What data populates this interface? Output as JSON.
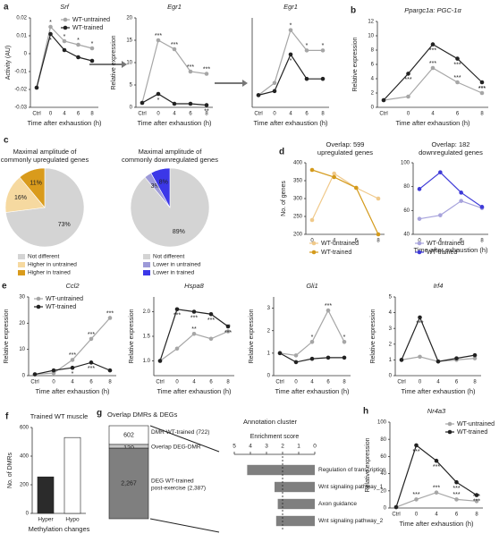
{
  "chart_data": [
    {
      "type": "line",
      "panel": "a",
      "title": "Srf",
      "ylabel": "Activity (AU)",
      "xlabel": "Time after exhaustion (h)",
      "categories": [
        "Ctrl",
        "0",
        "4",
        "6",
        "8"
      ],
      "ylim": [
        -0.03,
        0.02
      ],
      "yticks": [
        -0.03,
        -0.02,
        -0.01,
        0,
        0.01,
        0.02
      ],
      "legend": "upper right",
      "series": [
        {
          "name": "WT-untrained",
          "color": "#a6a6a6",
          "values": [
            -0.019,
            0.015,
            0.007,
            0.005,
            0.003
          ],
          "labels": [
            null,
            "*",
            "*",
            "*",
            "*"
          ]
        },
        {
          "name": "WT-trained",
          "color": "#222222",
          "values": [
            -0.019,
            0.011,
            0.002,
            -0.002,
            -0.004
          ],
          "labels": [
            null,
            "*",
            null,
            null,
            null
          ]
        }
      ]
    },
    {
      "type": "line",
      "title": "Egr1",
      "ylabel": "Relative expression",
      "xlabel": "Time after exhaustion (h)",
      "categories": [
        "Ctrl",
        "0",
        "4",
        "6",
        "8"
      ],
      "ylim": [
        0,
        20
      ],
      "yticks": [
        0,
        5,
        10,
        15,
        20
      ],
      "series": [
        {
          "name": "WT-untrained",
          "color": "#a6a6a6",
          "values": [
            1,
            15,
            13,
            8,
            7.5
          ],
          "labels": [
            null,
            "***",
            "***",
            "***",
            "***"
          ]
        },
        {
          "name": "WT-trained",
          "color": "#222222",
          "values": [
            1,
            3,
            0.8,
            0.8,
            0.5
          ],
          "labels": [
            null,
            "*",
            null,
            null,
            "**"
          ]
        }
      ]
    },
    {
      "type": "line",
      "title": "Egr1",
      "xlabel": "Time after exhaustion (h)",
      "categories": [
        "Ctrl",
        "0",
        "4",
        "6",
        "8"
      ],
      "ylim": [
        0,
        11
      ],
      "series": [
        {
          "name": "WT-untrained",
          "color": "#a6a6a6",
          "values": [
            1.5,
            3,
            9.5,
            7,
            7
          ],
          "labels": [
            null,
            null,
            "*",
            "*",
            "*"
          ]
        },
        {
          "name": "WT-trained",
          "color": "#222222",
          "values": [
            1.5,
            2,
            6.5,
            3.5,
            3.5
          ],
          "labels": [
            null,
            null,
            "*",
            null,
            null
          ]
        }
      ]
    },
    {
      "type": "line",
      "panel": "b",
      "title": "Ppargc1a: PGC-1α",
      "ylabel": "Relative expression",
      "xlabel": "Time after exhaustion (h)",
      "categories": [
        "Ctrl",
        "0",
        "4",
        "6",
        "8"
      ],
      "ylim": [
        0,
        12
      ],
      "yticks": [
        0,
        2,
        4,
        6,
        8,
        10,
        12
      ],
      "series": [
        {
          "name": "WT-untrained",
          "color": "#a6a6a6",
          "values": [
            1,
            1.5,
            5.5,
            3.5,
            2
          ],
          "labels": [
            null,
            null,
            "***",
            "***",
            "***"
          ]
        },
        {
          "name": "WT-trained",
          "color": "#222222",
          "values": [
            1,
            4.7,
            8.8,
            6.8,
            3.5
          ],
          "labels": [
            null,
            "***",
            "***",
            "***",
            "***"
          ]
        }
      ]
    },
    {
      "type": "pie",
      "panel": "c",
      "title_lines": [
        "Maximal amplitude of",
        "commonly upregulated genes"
      ],
      "categories": [
        "Not different",
        "Higher in untrained",
        "Higher in trained"
      ],
      "values": [
        73,
        16,
        11
      ],
      "value_labels": [
        "73%",
        "16%",
        "11%"
      ],
      "colors": [
        "#d4d4d4",
        "#f6d9a0",
        "#d99b1c"
      ]
    },
    {
      "type": "pie",
      "title_lines": [
        "Maximal amplitude of",
        "commonly downregulated genes"
      ],
      "categories": [
        "Not different",
        "Lower in untrained",
        "Lower in trained"
      ],
      "values": [
        89,
        3,
        8
      ],
      "value_labels": [
        "89%",
        "3%",
        "8%"
      ],
      "colors": [
        "#d4d4d4",
        "#9d9ad8",
        "#3b37e8"
      ]
    },
    {
      "type": "line",
      "panel": "d",
      "title_lines": [
        "Overlap: 599",
        "upregulated genes"
      ],
      "ylabel": "No. of genes",
      "categories": [
        "0",
        "4",
        "6",
        "8"
      ],
      "ylim": [
        200,
        400
      ],
      "yticks": [
        200,
        250,
        300,
        350,
        400
      ],
      "legend": "below",
      "series": [
        {
          "name": "WT-untrained",
          "color": "#f0c98a",
          "values": [
            240,
            370,
            330,
            300
          ]
        },
        {
          "name": "WT-trained",
          "color": "#d49a1b",
          "values": [
            380,
            360,
            330,
            200
          ]
        }
      ]
    },
    {
      "type": "line",
      "title_lines": [
        "Overlap: 182",
        "downregulated genes"
      ],
      "xlabel": "Time after exhaustion (h)",
      "categories": [
        "0",
        "4",
        "6",
        "8"
      ],
      "ylim": [
        40,
        100
      ],
      "yticks": [
        40,
        60,
        80,
        100
      ],
      "legend": "below",
      "series": [
        {
          "name": "WT-untrained",
          "color": "#a7a3dc",
          "values": [
            53,
            56,
            68,
            62
          ]
        },
        {
          "name": "WT-trained",
          "color": "#3f3bd8",
          "values": [
            78,
            92,
            75,
            63
          ]
        }
      ]
    },
    {
      "type": "line",
      "panel": "e",
      "title": "Ccl2",
      "ylabel": "Relative expression",
      "xlabel": "Time after exhaustion (h)",
      "categories": [
        "Ctrl",
        "0",
        "4",
        "6",
        "8"
      ],
      "ylim": [
        0,
        30
      ],
      "yticks": [
        0,
        10,
        20,
        30
      ],
      "legend": "upper left",
      "series": [
        {
          "name": "WT-untrained",
          "color": "#a6a6a6",
          "values": [
            0.5,
            1,
            6,
            14,
            22
          ],
          "labels": [
            null,
            null,
            "***",
            "***",
            "***"
          ]
        },
        {
          "name": "WT-trained",
          "color": "#222222",
          "values": [
            0.5,
            2,
            3,
            5,
            2
          ],
          "labels": [
            null,
            null,
            "*",
            "***",
            null
          ]
        }
      ]
    },
    {
      "type": "line",
      "title": "Hspa8",
      "ylabel": "Relative expression",
      "xlabel": "Time after exhaustion (h)",
      "categories": [
        "Ctrl",
        "0",
        "4",
        "6",
        "8"
      ],
      "ylim": [
        0.7,
        2.3
      ],
      "yticks": [
        {
          "value": 1,
          "label": "1.0"
        },
        1.5,
        {
          "value": 2,
          "label": "2.0"
        }
      ],
      "series": [
        {
          "name": "WT-untrained",
          "color": "#a6a6a6",
          "values": [
            1,
            1.25,
            1.55,
            1.45,
            1.6
          ],
          "labels": [
            null,
            null,
            "**",
            null,
            "**"
          ]
        },
        {
          "name": "WT-trained",
          "color": "#222222",
          "values": [
            1,
            2.05,
            2.0,
            1.95,
            1.7
          ],
          "labels": [
            null,
            "***",
            "***",
            "***",
            "***"
          ]
        }
      ]
    },
    {
      "type": "line",
      "title": "Gli1",
      "ylabel": "Relative expression",
      "xlabel": "Time after exhaustion (h)",
      "categories": [
        "Ctrl",
        "0",
        "4",
        "6",
        "8"
      ],
      "ylim": [
        0,
        3.5
      ],
      "yticks": [
        0,
        1,
        2,
        3
      ],
      "series": [
        {
          "name": "WT-untrained",
          "color": "#a6a6a6",
          "values": [
            1,
            0.9,
            1.5,
            2.9,
            1.5
          ],
          "labels": [
            null,
            null,
            "*",
            "***",
            "*"
          ]
        },
        {
          "name": "WT-trained",
          "color": "#222222",
          "values": [
            1,
            0.6,
            0.75,
            0.8,
            0.8
          ]
        }
      ]
    },
    {
      "type": "line",
      "title": "Irf4",
      "ylabel": "Relative expression",
      "xlabel": "Time after exhaustion (h)",
      "categories": [
        "Ctrl",
        "0",
        "4",
        "6",
        "8"
      ],
      "ylim": [
        0,
        5
      ],
      "yticks": [
        0,
        1,
        2,
        3,
        4,
        5
      ],
      "series": [
        {
          "name": "WT-untrained",
          "color": "#a6a6a6",
          "values": [
            1,
            1.2,
            0.9,
            1,
            1.1
          ]
        },
        {
          "name": "WT-trained",
          "color": "#222222",
          "values": [
            1,
            3.7,
            0.9,
            1.1,
            1.3
          ],
          "labels": [
            null,
            "***",
            null,
            null,
            null
          ]
        }
      ]
    },
    {
      "type": "bar",
      "panel": "f",
      "title": "Trained WT muscle",
      "ylabel": "No. of DMRs",
      "xlabel": "Methylation changes",
      "categories": [
        "Hyper",
        "Hypo"
      ],
      "values": [
        255,
        530
      ],
      "colors": [
        "#2b2b2b",
        "#ffffff"
      ],
      "ylim": [
        0,
        600
      ],
      "yticks": [
        0,
        200,
        400,
        600
      ]
    },
    {
      "type": "stack",
      "panel": "g",
      "title": "Overlap DMRs & DEGs",
      "values": [
        602,
        120,
        2267
      ],
      "value_labels": [
        "602",
        "120",
        "2,267"
      ],
      "colors": [
        "#ffffff",
        "#c8c8c8",
        "#7f7f7f"
      ],
      "label_lines": [
        [
          "DMR WT-trained (722)"
        ],
        [
          "Overlap DEG-DMR"
        ],
        [
          "DEG WT-trained",
          "post-exercise (2,387)"
        ]
      ]
    },
    {
      "type": "hbar",
      "title": "Annotation cluster",
      "xlabel": "Enrichment score",
      "categories": [
        "Regulation of transcription",
        "Wnt signaling pathway_1",
        "Axon guidance",
        "Wnt signaling pathway_2"
      ],
      "values": [
        4.2,
        2.5,
        2.3,
        2.4
      ],
      "color": "#7f7f7f",
      "xlim": [
        5,
        0
      ],
      "xticks": [
        5,
        4,
        3,
        2,
        1,
        0
      ],
      "threshold": 2
    },
    {
      "type": "line",
      "panel": "h",
      "title": "Nr4a3",
      "ylabel": "Relative expression",
      "xlabel": "Time after exhaustion (h)",
      "categories": [
        "Ctrl",
        "0",
        "4",
        "6",
        "8"
      ],
      "ylim": [
        0,
        100
      ],
      "yticks": [
        0,
        20,
        40,
        60,
        80,
        100
      ],
      "legend": "upper right",
      "series": [
        {
          "name": "WT-untrained",
          "color": "#a6a6a6",
          "values": [
            1,
            10,
            18,
            10,
            8
          ],
          "labels": [
            null,
            "***",
            "***",
            "***",
            "***"
          ]
        },
        {
          "name": "WT-trained",
          "color": "#222222",
          "values": [
            1,
            73,
            55,
            30,
            15
          ],
          "labels": [
            null,
            "***",
            "***",
            "***",
            "***"
          ]
        }
      ]
    }
  ]
}
